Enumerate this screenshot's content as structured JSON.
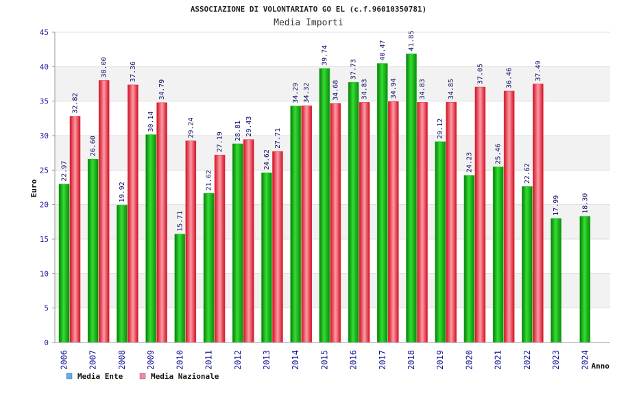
{
  "chart_data": {
    "type": "bar",
    "title": "ASSOCIAZIONE DI VOLONTARIATO GO EL (c.f.96010350781)",
    "subtitle": "Media Importi",
    "xlabel": "Anno",
    "ylabel": "Euro",
    "ylim": [
      0,
      45
    ],
    "yticks": [
      0,
      5,
      10,
      15,
      20,
      25,
      30,
      35,
      40,
      45
    ],
    "grid": true,
    "legend_position": "bottom-left",
    "categories": [
      "2006",
      "2007",
      "2008",
      "2009",
      "2010",
      "2011",
      "2012",
      "2013",
      "2014",
      "2015",
      "2016",
      "2017",
      "2018",
      "2019",
      "2020",
      "2021",
      "2022",
      "2023",
      "2024"
    ],
    "series": [
      {
        "name": "Media Ente",
        "color": "#22bb22",
        "legend_color": "#66aaee",
        "values": [
          22.97,
          26.6,
          19.92,
          30.14,
          15.71,
          21.62,
          28.81,
          24.62,
          34.29,
          39.74,
          37.73,
          40.47,
          41.85,
          29.12,
          24.23,
          25.46,
          22.62,
          17.99,
          18.3
        ],
        "labels": [
          "22.97",
          "26.60",
          "19.92",
          "30.14",
          "15.71",
          "21.62",
          "28.81",
          "24.62",
          "34.29",
          "39.74",
          "37.73",
          "40.47",
          "41.85",
          "29.12",
          "24.23",
          "25.46",
          "22.62",
          "17.99",
          "18.30"
        ]
      },
      {
        "name": "Media Nazionale",
        "color": "#ee3344",
        "legend_color": "#ee88aa",
        "values": [
          32.82,
          38.0,
          37.36,
          34.79,
          29.24,
          27.19,
          29.43,
          27.71,
          34.32,
          34.68,
          34.83,
          34.94,
          34.83,
          34.85,
          37.05,
          36.46,
          37.49,
          null,
          null
        ],
        "labels": [
          "32.82",
          "38.00",
          "37.36",
          "34.79",
          "29.24",
          "27.19",
          "29.43",
          "27.71",
          "34.32",
          "34.68",
          "34.83",
          "34.94",
          "34.83",
          "34.85",
          "37.05",
          "36.46",
          "37.49",
          null,
          null
        ]
      }
    ]
  }
}
